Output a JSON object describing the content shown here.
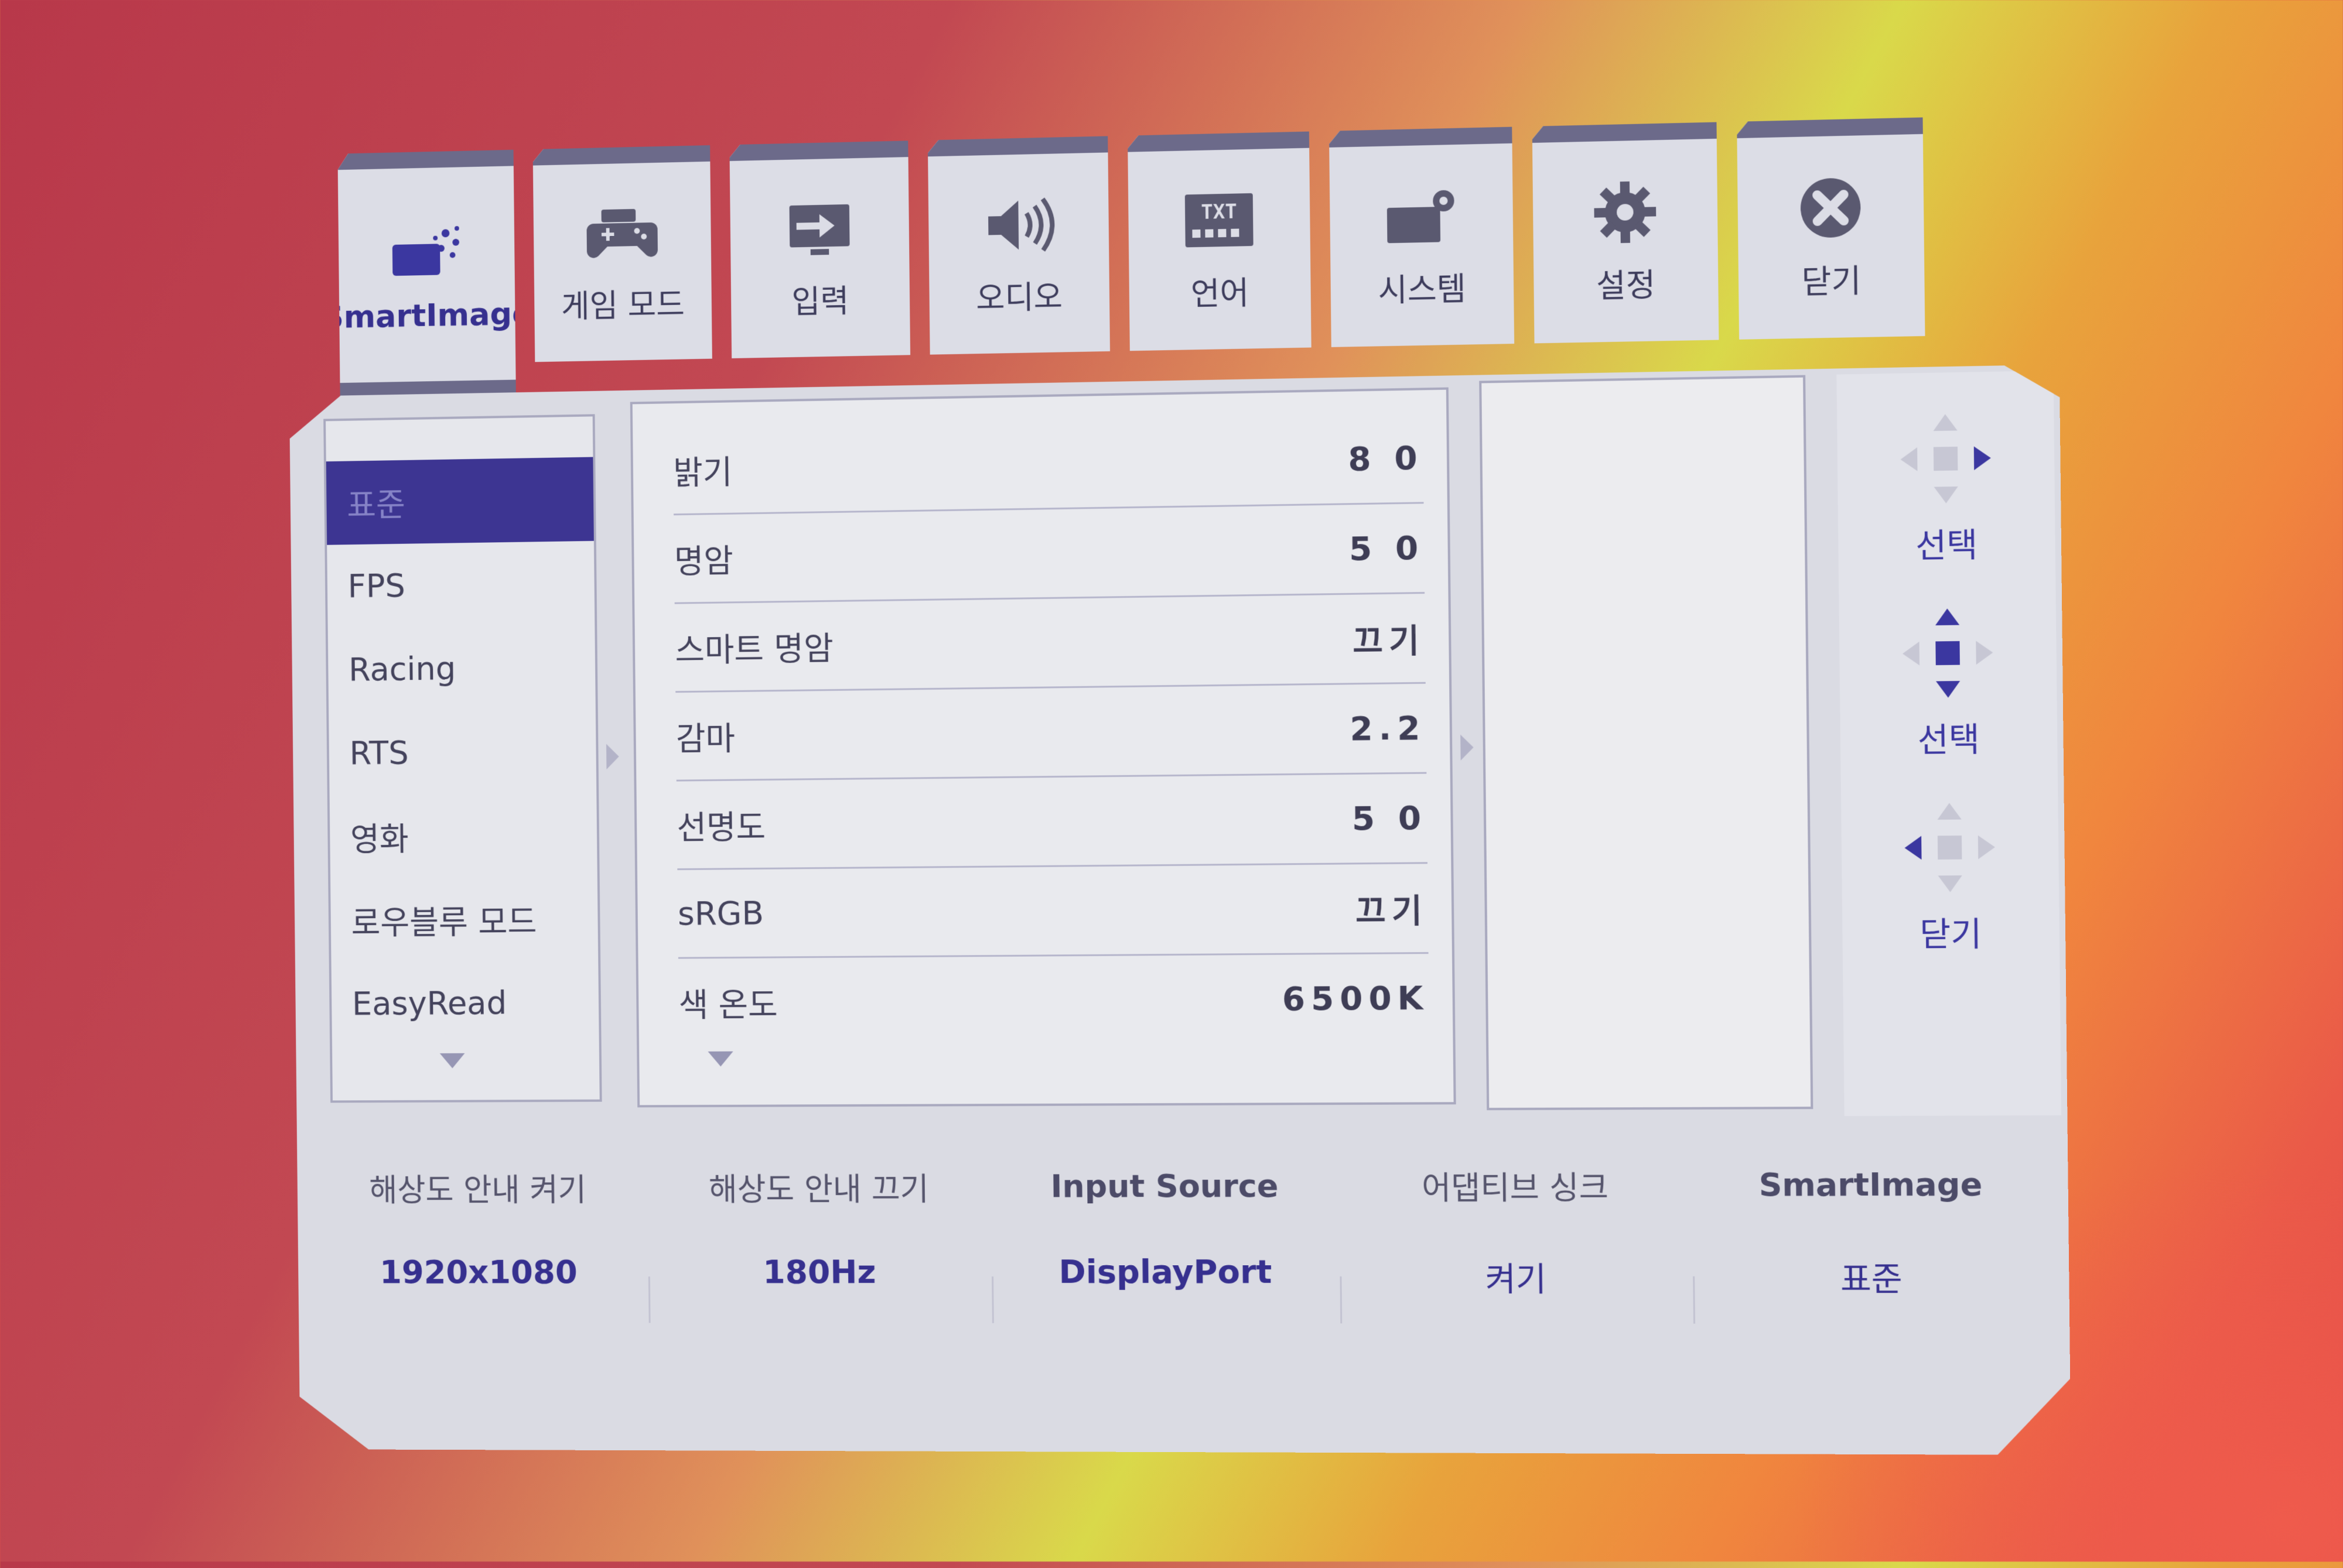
{
  "tabs": [
    {
      "label": "SmartImage",
      "icon": "smartimage-icon",
      "active": true
    },
    {
      "label": "게임 모드",
      "icon": "gamepad-icon"
    },
    {
      "label": "입력",
      "icon": "input-icon"
    },
    {
      "label": "오디오",
      "icon": "speaker-icon"
    },
    {
      "label": "언어",
      "icon": "language-txt-icon"
    },
    {
      "label": "시스템",
      "icon": "system-icon"
    },
    {
      "label": "설정",
      "icon": "gear-icon"
    },
    {
      "label": "닫기",
      "icon": "close-icon"
    }
  ],
  "modes": {
    "items": [
      "표준",
      "FPS",
      "Racing",
      "RTS",
      "영화",
      "로우블루 모드",
      "EasyRead"
    ],
    "selected": "표준"
  },
  "settings": [
    {
      "label": "밝기",
      "value": "8 0"
    },
    {
      "label": "명암",
      "value": "5 0"
    },
    {
      "label": "스마트 명암",
      "value": "끄기"
    },
    {
      "label": "감마",
      "value": "2.2"
    },
    {
      "label": "선명도",
      "value": "5 0"
    },
    {
      "label": "sRGB",
      "value": "끄기"
    },
    {
      "label": "색 온도",
      "value": "6500K"
    }
  ],
  "nav": [
    {
      "label": "선택",
      "icon": "dpad-right-icon"
    },
    {
      "label": "선택",
      "icon": "dpad-updown-icon"
    },
    {
      "label": "닫기",
      "icon": "dpad-left-icon"
    }
  ],
  "info": [
    {
      "header": "해상도 안내 켜기",
      "value": "1920x1080"
    },
    {
      "header": "해상도 안내 끄기",
      "value": "180Hz"
    },
    {
      "header": "Input Source",
      "value": "DisplayPort"
    },
    {
      "header": "어댑티브 싱크",
      "value": "켜기"
    },
    {
      "header": "SmartImage",
      "value": "표준"
    }
  ],
  "colors": {
    "accent": "#3b37a0",
    "panel": "#dadbe3",
    "tab_border": "#6c6a8a"
  }
}
